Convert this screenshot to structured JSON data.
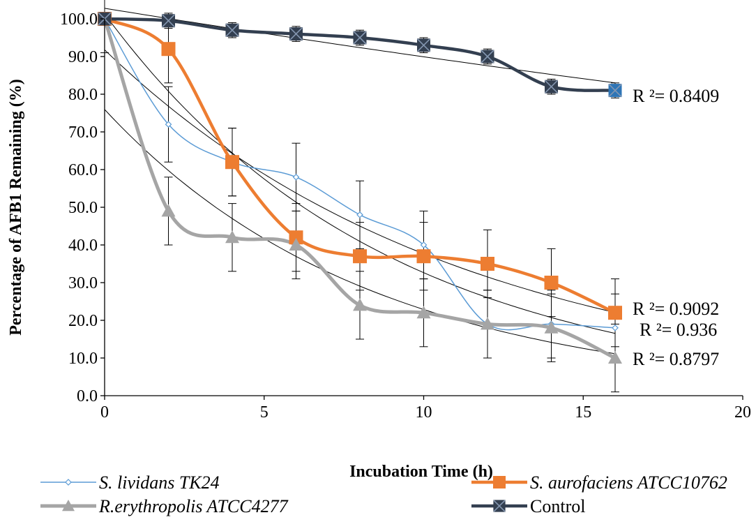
{
  "chart_data": {
    "type": "line",
    "title": "",
    "xlabel": "Incubation Time (h)",
    "ylabel": "Percentage of AFB1 Remaining (%)",
    "xlim": [
      0,
      20
    ],
    "ylim": [
      0,
      100
    ],
    "x_ticks": [
      "0",
      "5",
      "10",
      "15",
      "20"
    ],
    "y_ticks": [
      "0.0",
      "10.0",
      "20.0",
      "30.0",
      "40.0",
      "50.0",
      "60.0",
      "70.0",
      "80.0",
      "90.0",
      "100.0"
    ],
    "grid": false,
    "legend_position": "bottom",
    "x": [
      0,
      2,
      4,
      6,
      8,
      10,
      12,
      14,
      16
    ],
    "series": [
      {
        "name": "S. lividans TK24",
        "italic": true,
        "color": "#5B9BD5",
        "marker": "diamond",
        "values": [
          100,
          72,
          62,
          58,
          48,
          40,
          19,
          19,
          18
        ],
        "error": [
          0,
          10,
          9,
          9,
          9,
          9,
          9,
          9,
          9
        ],
        "r2_label": "R ²= 0.936"
      },
      {
        "name": "S. aurofaciens ATCC10762",
        "italic": true,
        "color": "#ED7D31",
        "marker": "square",
        "values": [
          100,
          92,
          62,
          42,
          37,
          37,
          35,
          30,
          22
        ],
        "error": [
          0,
          9,
          9,
          9,
          9,
          9,
          9,
          9,
          9
        ],
        "r2_label": "R ²= 0.9092"
      },
      {
        "name": "R.erythropolis ATCC4277",
        "italic": true,
        "color": "#A5A5A5",
        "marker": "triangle",
        "values": [
          100,
          49,
          42,
          40,
          24,
          22,
          19,
          18,
          10
        ],
        "error": [
          0,
          9,
          9,
          9,
          9,
          9,
          9,
          9,
          9
        ],
        "r2_label": "R ²= 0.8797"
      },
      {
        "name": "Control",
        "italic": false,
        "color": "#333F50",
        "marker": "square-x",
        "values": [
          100,
          99.5,
          97,
          96,
          95,
          93,
          90,
          82,
          81
        ],
        "error": [
          9,
          2,
          2,
          2,
          2,
          2,
          2,
          2,
          2
        ],
        "r2_label": "R ²= 0.8409"
      }
    ]
  }
}
